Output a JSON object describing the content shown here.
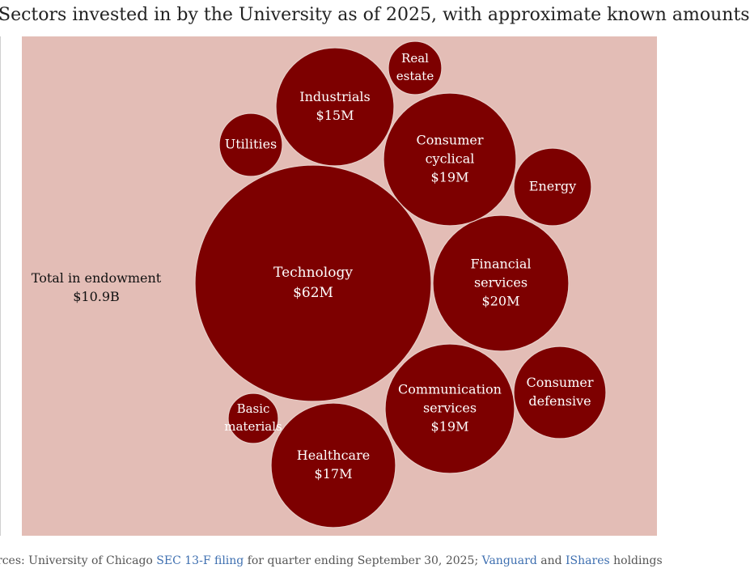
{
  "title": "Sectors invested in by the University as of 2025, with approximate known amounts",
  "total": {
    "label": "Total in endowment",
    "value": "$10.9B"
  },
  "source": {
    "prefix": "rces: University of Chicago ",
    "link1": "SEC 13-F filing",
    "middle": " for quarter ending September 30, 2025; ",
    "link2": "Vanguard",
    "and": " and ",
    "link3": "IShares",
    "suffix": " holdings"
  },
  "colors": {
    "bubble": "#7d0000",
    "bubble_stroke": "#e8cfc9",
    "background": "#e3bdb6",
    "link": "#3e6fb0"
  },
  "chart_data": {
    "type": "bubble",
    "unit": "$M",
    "bubbles": [
      {
        "sector": "Technology",
        "lines": [
          "Technology"
        ],
        "value_label": "$62M",
        "value": 62
      },
      {
        "sector": "Financial services",
        "lines": [
          "Financial",
          "services"
        ],
        "value_label": "$20M",
        "value": 20
      },
      {
        "sector": "Consumer cyclical",
        "lines": [
          "Consumer",
          "cyclical"
        ],
        "value_label": "$19M",
        "value": 19
      },
      {
        "sector": "Communication services",
        "lines": [
          "Communication",
          "services"
        ],
        "value_label": "$19M",
        "value": 19
      },
      {
        "sector": "Healthcare",
        "lines": [
          "Healthcare"
        ],
        "value_label": "$17M",
        "value": 17
      },
      {
        "sector": "Industrials",
        "lines": [
          "Industrials"
        ],
        "value_label": "$15M",
        "value": 15
      },
      {
        "sector": "Consumer defensive",
        "lines": [
          "Consumer",
          "defensive"
        ],
        "value_label": "",
        "value": null
      },
      {
        "sector": "Energy",
        "lines": [
          "Energy"
        ],
        "value_label": "",
        "value": null
      },
      {
        "sector": "Utilities",
        "lines": [
          "Utilities"
        ],
        "value_label": "",
        "value": null
      },
      {
        "sector": "Real estate",
        "lines": [
          "Real",
          "estate"
        ],
        "value_label": "",
        "value": null
      },
      {
        "sector": "Basic materials",
        "lines": [
          "Basic",
          "materials"
        ],
        "value_label": "",
        "value": null
      }
    ]
  }
}
